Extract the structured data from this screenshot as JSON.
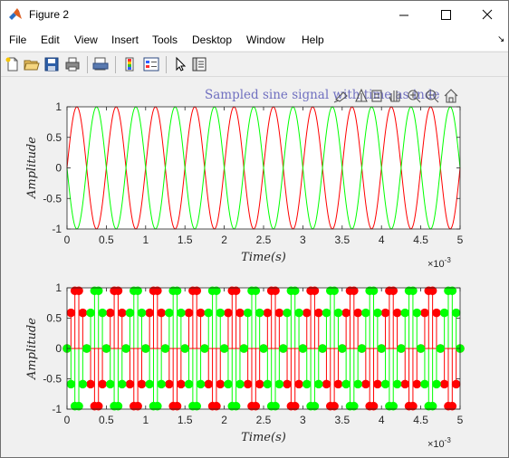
{
  "window": {
    "title": "Figure 2"
  },
  "menu": [
    "File",
    "Edit",
    "View",
    "Insert",
    "Tools",
    "Desktop",
    "Window",
    "Help"
  ],
  "toolbar": [
    "new-figure-icon",
    "open-file-icon",
    "save-icon",
    "print-icon",
    "print-preview-icon",
    "colorbar-icon",
    "legend-icon",
    "pointer-icon",
    "property-inspector-icon"
  ],
  "axes_toolbar": [
    "brush-icon",
    "data-tips-icon",
    "link-icon",
    "pan-icon",
    "zoom-in-icon",
    "zoom-out-icon",
    "home-icon"
  ],
  "colors": {
    "red": "#ff0000",
    "green": "#00ff00",
    "title": "#7070c0"
  },
  "chart_data": [
    {
      "type": "line",
      "title": "Sampled sine signal with time as inde",
      "xlabel": "Time(s)",
      "ylabel": "Amplitude",
      "xlim": [
        0,
        0.005
      ],
      "ylim": [
        -1,
        1
      ],
      "x_multiplier": "×10",
      "x_multiplier_exp": "-3",
      "xticks": [
        0,
        0.5,
        1,
        1.5,
        2,
        2.5,
        3,
        3.5,
        4,
        4.5,
        5
      ],
      "xtick_labels": [
        "0",
        "0.5",
        "1",
        "1.5",
        "2",
        "2.5",
        "3",
        "3.5",
        "4",
        "4.5",
        "5"
      ],
      "yticks": [
        -1,
        -0.5,
        0,
        0.5,
        1
      ],
      "ytick_labels": [
        "-1",
        "-0.5",
        "0",
        "0.5",
        "1"
      ],
      "series": [
        {
          "color": "#ff0000",
          "frequency_hz": 2000,
          "amplitude": 1,
          "phase": "sin"
        },
        {
          "color": "#00ff00",
          "frequency_hz": 2000,
          "amplitude": 1,
          "phase": "-sin"
        }
      ]
    },
    {
      "type": "stem",
      "xlabel": "Time(s)",
      "ylabel": "Amplitude",
      "xlim": [
        0,
        0.005
      ],
      "ylim": [
        -1,
        1
      ],
      "x_multiplier": "×10",
      "x_multiplier_exp": "-3",
      "xticks": [
        0,
        0.5,
        1,
        1.5,
        2,
        2.5,
        3,
        3.5,
        4,
        4.5,
        5
      ],
      "xtick_labels": [
        "0",
        "0.5",
        "1",
        "1.5",
        "2",
        "2.5",
        "3",
        "3.5",
        "4",
        "4.5",
        "5"
      ],
      "yticks": [
        -1,
        -0.5,
        0,
        0.5,
        1
      ],
      "ytick_labels": [
        "-1",
        "-0.5",
        "0",
        "0.5",
        "1"
      ],
      "sample_rate_hz": 20000,
      "series": [
        {
          "color": "#ff0000",
          "frequency_hz": 2000,
          "amplitude": 1,
          "phase": "sin"
        },
        {
          "color": "#00ff00",
          "frequency_hz": 2000,
          "amplitude": 1,
          "phase": "-sin"
        }
      ]
    }
  ]
}
